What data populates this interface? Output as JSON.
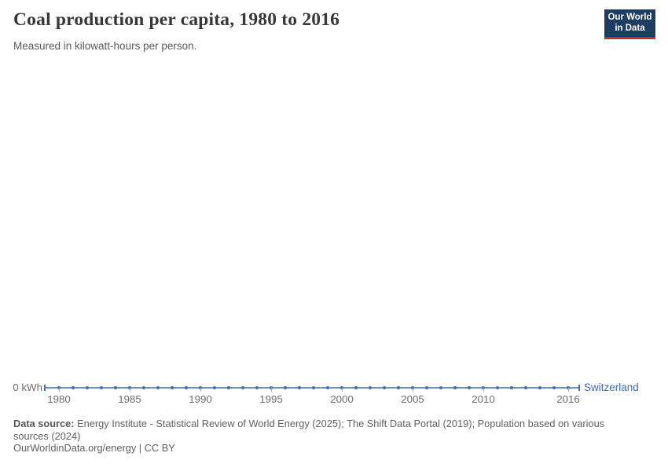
{
  "header": {
    "title": "Coal production per capita, 1980 to 2016",
    "subtitle": "Measured in kilowatt-hours per person.",
    "logo": {
      "line1": "Our World",
      "line2": "in Data"
    }
  },
  "chart": {
    "y_zero_label": "0 kWh",
    "series_label": "Switzerland",
    "tick_years": [
      1980,
      1985,
      1990,
      1995,
      2000,
      2005,
      2010,
      2016
    ],
    "colors": {
      "line": "#7490c0",
      "marker": "#4c6fa8",
      "cap": "#4c6fa8",
      "tick": "#a9b0bd",
      "series_label": "#3d6bc0",
      "logo_navy": "#1d3d63",
      "logo_red": "#cd2a27"
    }
  },
  "chart_data": {
    "type": "line",
    "title": "Coal production per capita, 1980 to 2016",
    "subtitle": "Measured in kilowatt-hours per person.",
    "unit": "kilowatt-hours per person",
    "x": [
      1980,
      1981,
      1982,
      1983,
      1984,
      1985,
      1986,
      1987,
      1988,
      1989,
      1990,
      1991,
      1992,
      1993,
      1994,
      1995,
      1996,
      1997,
      1998,
      1999,
      2000,
      2001,
      2002,
      2003,
      2004,
      2005,
      2006,
      2007,
      2008,
      2009,
      2010,
      2011,
      2012,
      2013,
      2014,
      2015,
      2016
    ],
    "series": [
      {
        "name": "Switzerland",
        "values": [
          0,
          0,
          0,
          0,
          0,
          0,
          0,
          0,
          0,
          0,
          0,
          0,
          0,
          0,
          0,
          0,
          0,
          0,
          0,
          0,
          0,
          0,
          0,
          0,
          0,
          0,
          0,
          0,
          0,
          0,
          0,
          0,
          0,
          0,
          0,
          0,
          0
        ]
      }
    ],
    "xlim": [
      1980,
      2016
    ],
    "ylim": [
      0,
      0
    ],
    "ylabel": "kWh",
    "grid": false,
    "legend_position": "end-of-line"
  },
  "footer": {
    "source_label": "Data source:",
    "source_text": "Energy Institute - Statistical Review of World Energy (2025); The Shift Data Portal (2019); Population based on various sources (2024)",
    "license": "OurWorldinData.org/energy | CC BY"
  }
}
